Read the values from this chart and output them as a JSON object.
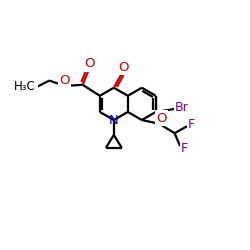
{
  "bg_color": "#ffffff",
  "bond_color": "#000000",
  "N_color": "#0000cc",
  "O_color": "#cc0000",
  "Br_color": "#800080",
  "F_color": "#800080",
  "line_width": 1.6,
  "figsize": [
    2.5,
    2.5
  ],
  "dpi": 100,
  "xlim": [
    0,
    10
  ],
  "ylim": [
    0,
    10
  ]
}
